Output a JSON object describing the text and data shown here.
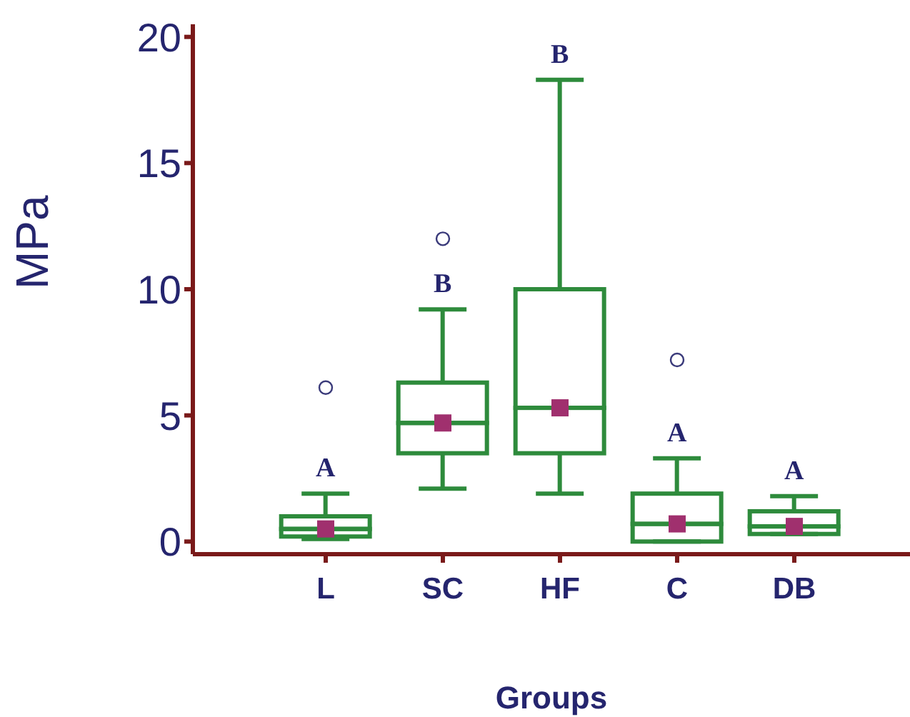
{
  "chart_data": {
    "type": "box",
    "xlabel": "Groups",
    "ylabel": "MPa",
    "categories": [
      "L",
      "SC",
      "HF",
      "C",
      "DB"
    ],
    "series": [
      {
        "color": "#2e8b3c",
        "boxes": [
          {
            "low": 0.1,
            "q1": 0.2,
            "median": 0.5,
            "q3": 1.0,
            "high": 1.9,
            "mean": 0.5,
            "outliers": [
              6.1
            ]
          },
          {
            "low": 2.1,
            "q1": 3.5,
            "median": 4.7,
            "q3": 6.3,
            "high": 9.2,
            "mean": 4.7,
            "outliers": [
              12
            ]
          },
          {
            "low": 1.9,
            "q1": 3.5,
            "median": 5.3,
            "q3": 10.0,
            "high": 18.3,
            "mean": 5.3
          },
          {
            "low": 0.0,
            "q1": 0.0,
            "median": 0.7,
            "q3": 1.9,
            "high": 3.3,
            "mean": 0.7,
            "outliers": [
              7.2
            ]
          },
          {
            "low": 0.3,
            "q1": 0.3,
            "median": 0.6,
            "q3": 1.2,
            "high": 1.8,
            "mean": 0.6
          }
        ]
      }
    ],
    "ylim": [
      -0.5,
      20.5
    ],
    "yticks": [
      0,
      5,
      10,
      15,
      20
    ],
    "grid": false,
    "annotations": [
      "A",
      "B",
      "B",
      "A",
      "A"
    ]
  }
}
